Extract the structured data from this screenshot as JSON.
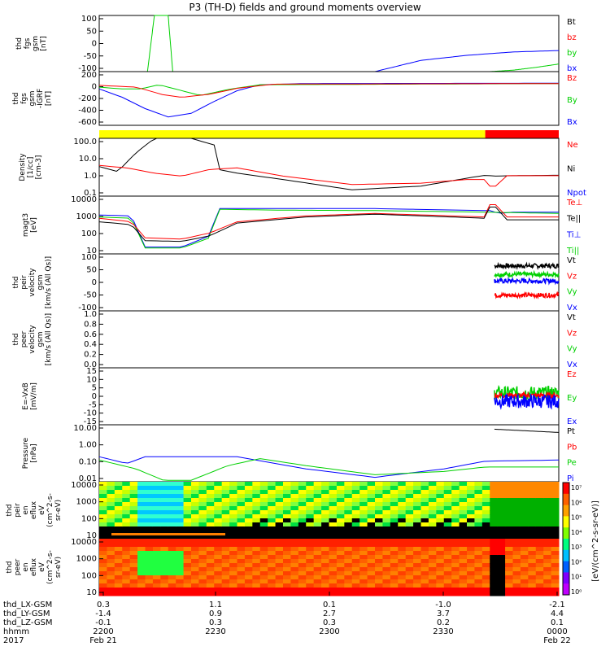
{
  "title": "P3 (TH-D) fields and ground moments overview",
  "colors": {
    "black": "#000000",
    "red": "#ff0000",
    "green": "#00d000",
    "blue": "#0000ff",
    "yellow": "#ffff00"
  },
  "chart_data": [
    {
      "type": "line",
      "ylabel": [
        "thd",
        "fgs",
        "gsm",
        "[nT]"
      ],
      "ylim": [
        -100,
        100
      ],
      "yticks": [
        "100",
        "50",
        "0",
        "-50",
        "-100"
      ],
      "legend": [
        {
          "name": "Bt",
          "color": "#000000"
        },
        {
          "name": "bz",
          "color": "#ff0000"
        },
        {
          "name": "by",
          "color": "#00d000"
        },
        {
          "name": "bx",
          "color": "#0000ff"
        }
      ],
      "series": [
        {
          "name": "by",
          "color": "#00d000",
          "x": [
            0.105,
            0.12,
            0.13,
            0.15,
            0.16
          ],
          "y": [
            -100,
            100,
            100,
            100,
            -100
          ]
        },
        {
          "name": "bx",
          "color": "#0000ff",
          "x": [
            0.6,
            0.7,
            0.8,
            0.9,
            1.0
          ],
          "y": [
            -100,
            -60,
            -42,
            -30,
            -25
          ]
        },
        {
          "name": "by2",
          "color": "#00d000",
          "x": [
            0.85,
            0.9,
            0.95,
            1.0
          ],
          "y": [
            -100,
            -95,
            -85,
            -73
          ]
        }
      ]
    },
    {
      "type": "line",
      "ylabel": [
        "thd",
        "fgs",
        "gsm",
        "-IGRF",
        "[nT]"
      ],
      "ylim": [
        -700,
        200
      ],
      "yticks": [
        "200",
        "0",
        "-200",
        "-400",
        "-600"
      ],
      "legend": [
        {
          "name": "Bz",
          "color": "#ff0000"
        },
        {
          "name": "By",
          "color": "#00d000"
        },
        {
          "name": "Bx",
          "color": "#0000ff"
        }
      ],
      "series": [
        {
          "name": "Bx",
          "color": "#0000ff",
          "x": [
            0,
            0.05,
            0.1,
            0.15,
            0.2,
            0.25,
            0.3,
            0.35,
            0.45,
            1.0
          ],
          "y": [
            -90,
            -230,
            -420,
            -560,
            -500,
            -300,
            -120,
            -20,
            0,
            5
          ]
        },
        {
          "name": "By",
          "color": "#00d000",
          "x": [
            0,
            0.05,
            0.09,
            0.13,
            0.18,
            0.22,
            0.28,
            0.35,
            1.0
          ],
          "y": [
            -60,
            -90,
            -90,
            -20,
            -120,
            -200,
            -100,
            -20,
            0
          ]
        },
        {
          "name": "Bz",
          "color": "#ff0000",
          "x": [
            0,
            0.08,
            0.14,
            0.18,
            0.24,
            0.3,
            0.38,
            1.0
          ],
          "y": [
            -30,
            -60,
            -190,
            -230,
            -180,
            -80,
            -10,
            0
          ]
        }
      ]
    },
    {
      "type": "bar",
      "note": "mode bar",
      "segments": [
        {
          "from": 0,
          "to": 0.84,
          "color": "#ffff00"
        },
        {
          "from": 0.84,
          "to": 1.0,
          "color": "#ff0000"
        }
      ]
    },
    {
      "type": "line",
      "log": true,
      "ylabel": [
        "Density",
        "[1/cc]",
        "[cm-3]"
      ],
      "ylim": [
        0.05,
        150
      ],
      "yticks": [
        "100.0",
        "10.0",
        "1.0",
        "0.1"
      ],
      "legend": [
        {
          "name": "Ne",
          "color": "#ff0000"
        },
        {
          "name": "Ni",
          "color": "#000000"
        },
        {
          "name": "Npot",
          "color": "#0000ff"
        }
      ],
      "series": [
        {
          "name": "Ni",
          "color": "#000000",
          "x": [
            0,
            0.04,
            0.08,
            0.12,
            0.2,
            0.25,
            0.26,
            0.3,
            0.4,
            0.55,
            0.7,
            0.8,
            0.84,
            0.86,
            0.9,
            1.0
          ],
          "y": [
            3,
            1.5,
            20,
            150,
            150,
            60,
            2,
            1.2,
            0.5,
            0.12,
            0.2,
            0.6,
            0.9,
            0.8,
            0.85,
            0.9
          ]
        },
        {
          "name": "Ne",
          "color": "#ff0000",
          "x": [
            0,
            0.06,
            0.12,
            0.18,
            0.24,
            0.3,
            0.4,
            0.55,
            0.7,
            0.8,
            0.84,
            0.845,
            0.87,
            0.88,
            1.0
          ],
          "y": [
            3.5,
            2.5,
            1.2,
            0.8,
            2,
            2.5,
            0.8,
            0.25,
            0.3,
            0.5,
            0.5,
            0.2,
            0.2,
            0.85,
            0.85
          ]
        }
      ]
    },
    {
      "type": "line",
      "log": true,
      "ylabel": [
        "magt3",
        "[eV]"
      ],
      "ylim": [
        3,
        12000
      ],
      "yticks": [
        "10000",
        "1000",
        "100",
        "10"
      ],
      "legend": [
        {
          "name": "Te⊥",
          "color": "#ff0000"
        },
        {
          "name": "Te||",
          "color": "#000000"
        },
        {
          "name": "Ti⊥",
          "color": "#0000ff"
        },
        {
          "name": "Ti||",
          "color": "#00d000"
        }
      ],
      "series": [
        {
          "name": "Ti⊥",
          "color": "#0000ff",
          "x": [
            0,
            0.07,
            0.1,
            0.18,
            0.24,
            0.26,
            0.4,
            0.6,
            0.84,
            0.85,
            0.87,
            0.9,
            1.0
          ],
          "y": [
            800,
            700,
            8,
            8,
            40,
            2000,
            2000,
            2000,
            1500,
            1500,
            1000,
            1200,
            1200
          ]
        },
        {
          "name": "Ti||",
          "color": "#00d000",
          "x": [
            0,
            0.07,
            0.1,
            0.18,
            0.24,
            0.26,
            0.4,
            0.6,
            0.84,
            1.0
          ],
          "y": [
            600,
            500,
            7,
            7,
            30,
            1800,
            1600,
            1500,
            1200,
            1000
          ]
        },
        {
          "name": "Te⊥",
          "color": "#ff0000",
          "x": [
            0,
            0.07,
            0.1,
            0.18,
            0.24,
            0.3,
            0.45,
            0.6,
            0.84,
            0.845,
            0.87,
            0.88,
            1.0
          ],
          "y": [
            500,
            300,
            30,
            25,
            60,
            300,
            700,
            1000,
            600,
            3500,
            3500,
            600,
            600
          ]
        },
        {
          "name": "Te||",
          "color": "#000000",
          "x": [
            0,
            0.07,
            0.1,
            0.18,
            0.24,
            0.3,
            0.45,
            0.6,
            0.84,
            0.845,
            0.87,
            0.88,
            1.0
          ],
          "y": [
            300,
            200,
            20,
            18,
            40,
            250,
            600,
            900,
            500,
            2500,
            2500,
            400,
            400
          ]
        }
      ]
    },
    {
      "type": "line",
      "ylabel": [
        "thd",
        "peir",
        "velocity",
        "gsm",
        "[km/s (All Qs)]"
      ],
      "ylim": [
        -100,
        100
      ],
      "yticks": [
        "100",
        "50",
        "0",
        "-50",
        "-100"
      ],
      "legend": [
        {
          "name": "Vt",
          "color": "#000000"
        },
        {
          "name": "Vz",
          "color": "#ff0000"
        },
        {
          "name": "Vy",
          "color": "#00d000"
        },
        {
          "name": "Vx",
          "color": "#0000ff"
        }
      ],
      "series": [
        {
          "name": "Vt",
          "color": "#000000",
          "x": [
            0.86,
            1.0
          ],
          "y": [
            58,
            58
          ],
          "noise": 8
        },
        {
          "name": "Vy",
          "color": "#00d000",
          "x": [
            0.86,
            1.0
          ],
          "y": [
            28,
            28
          ],
          "noise": 8
        },
        {
          "name": "Vx",
          "color": "#0000ff",
          "x": [
            0.86,
            1.0
          ],
          "y": [
            5,
            5
          ],
          "noise": 8
        },
        {
          "name": "Vz",
          "color": "#ff0000",
          "x": [
            0.86,
            1.0
          ],
          "y": [
            -45,
            -45
          ],
          "noise": 8
        }
      ]
    },
    {
      "type": "line",
      "ylabel": [
        "thd",
        "peer",
        "velocity",
        "gsm",
        "[km/s (All Qs)]"
      ],
      "ylim": [
        0,
        1
      ],
      "yticks": [
        "1.0",
        "0.8",
        "0.6",
        "0.4",
        "0.2",
        "0.0"
      ],
      "legend": [
        {
          "name": "Vt",
          "color": "#000000"
        },
        {
          "name": "Vz",
          "color": "#ff0000"
        },
        {
          "name": "Vy",
          "color": "#00d000"
        },
        {
          "name": "Vx",
          "color": "#0000ff"
        }
      ],
      "series": []
    },
    {
      "type": "line",
      "ylabel": [
        "E=-VxB",
        "[mV/m]"
      ],
      "ylim": [
        -17,
        17
      ],
      "yticks": [
        "15",
        "10",
        "5",
        "0",
        "-5",
        "-10",
        "-15"
      ],
      "legend": [
        {
          "name": "Ez",
          "color": "#ff0000"
        },
        {
          "name": "Ey",
          "color": "#00d000"
        },
        {
          "name": "Ex",
          "color": "#0000ff"
        }
      ],
      "series": [
        {
          "name": "Ey",
          "color": "#00d000",
          "x": [
            0.86,
            1.0
          ],
          "y": [
            2,
            2
          ],
          "noise": 4
        },
        {
          "name": "Ez",
          "color": "#ff0000",
          "x": [
            0.86,
            1.0
          ],
          "y": [
            0.5,
            0.5
          ],
          "noise": 1.5
        },
        {
          "name": "Ex",
          "color": "#0000ff",
          "x": [
            0.86,
            1.0
          ],
          "y": [
            -3,
            -3
          ],
          "noise": 4
        }
      ]
    },
    {
      "type": "line",
      "log": true,
      "ylabel": [
        "Pressure",
        "[nPa]"
      ],
      "ylim": [
        0.004,
        30
      ],
      "yticks": [
        "10.00",
        "1.00",
        "0.10",
        "0.01"
      ],
      "legend": [
        {
          "name": "Pt",
          "color": "#000000"
        },
        {
          "name": "Pb",
          "color": "#ff0000"
        },
        {
          "name": "Pe",
          "color": "#00d000"
        },
        {
          "name": "Pi",
          "color": "#0000ff"
        }
      ],
      "series": [
        {
          "name": "Pi",
          "color": "#0000ff",
          "x": [
            0,
            0.06,
            0.1,
            0.2,
            0.3,
            0.45,
            0.6,
            0.75,
            0.84,
            1.0
          ],
          "y": [
            0.2,
            0.07,
            0.2,
            0.2,
            0.2,
            0.03,
            0.008,
            0.03,
            0.1,
            0.12
          ]
        },
        {
          "name": "Pe",
          "color": "#00d000",
          "x": [
            0,
            0.08,
            0.14,
            0.2,
            0.28,
            0.35,
            0.45,
            0.6,
            0.75,
            0.84,
            1.0
          ],
          "y": [
            0.12,
            0.03,
            0.005,
            0.005,
            0.05,
            0.15,
            0.05,
            0.012,
            0.02,
            0.04,
            0.04
          ]
        },
        {
          "name": "Pt",
          "color": "#000000",
          "x": [
            0.86,
            0.9,
            1.0
          ],
          "y": [
            15,
            13,
            9
          ]
        }
      ]
    },
    {
      "type": "heatmap",
      "ylabel": [
        "thd",
        "peir",
        "en",
        "eflux",
        "eV",
        "(cm^2-s-",
        "sr-eV)"
      ],
      "yticks": [
        "10000",
        "1000",
        "100",
        "10"
      ],
      "colorbar_label": "[eV/(cm^2-s-sr-eV)]"
    },
    {
      "type": "heatmap",
      "ylabel": [
        "thd",
        "peer",
        "en",
        "eflux",
        "eV",
        "(cm^2-s-",
        "sr-eV)"
      ],
      "yticks": [
        "10000",
        "1000",
        "100",
        "10"
      ]
    }
  ],
  "colorbar_ticks": [
    "10⁷",
    "10⁶",
    "10⁵",
    "10⁴",
    "10³",
    "10²",
    "10¹",
    "10⁰"
  ],
  "xaxis": {
    "rows": [
      {
        "label": "thd_LX-GSM",
        "values": [
          "0.3",
          "1.1",
          "0.1",
          "-1.0",
          "-2.1"
        ]
      },
      {
        "label": "thd_LY-GSM",
        "values": [
          "-1.4",
          "0.9",
          "2.7",
          "3.7",
          "4.4"
        ]
      },
      {
        "label": "thd_LZ-GSM",
        "values": [
          "-0.1",
          "0.3",
          "0.3",
          "0.2",
          "0.1"
        ]
      },
      {
        "label": "hhmm",
        "values": [
          "2200",
          "2230",
          "2300",
          "2330",
          "0000"
        ]
      },
      {
        "label": "2017",
        "values": [
          "Feb 21",
          "",
          "",
          "",
          "Feb 22"
        ]
      }
    ]
  }
}
